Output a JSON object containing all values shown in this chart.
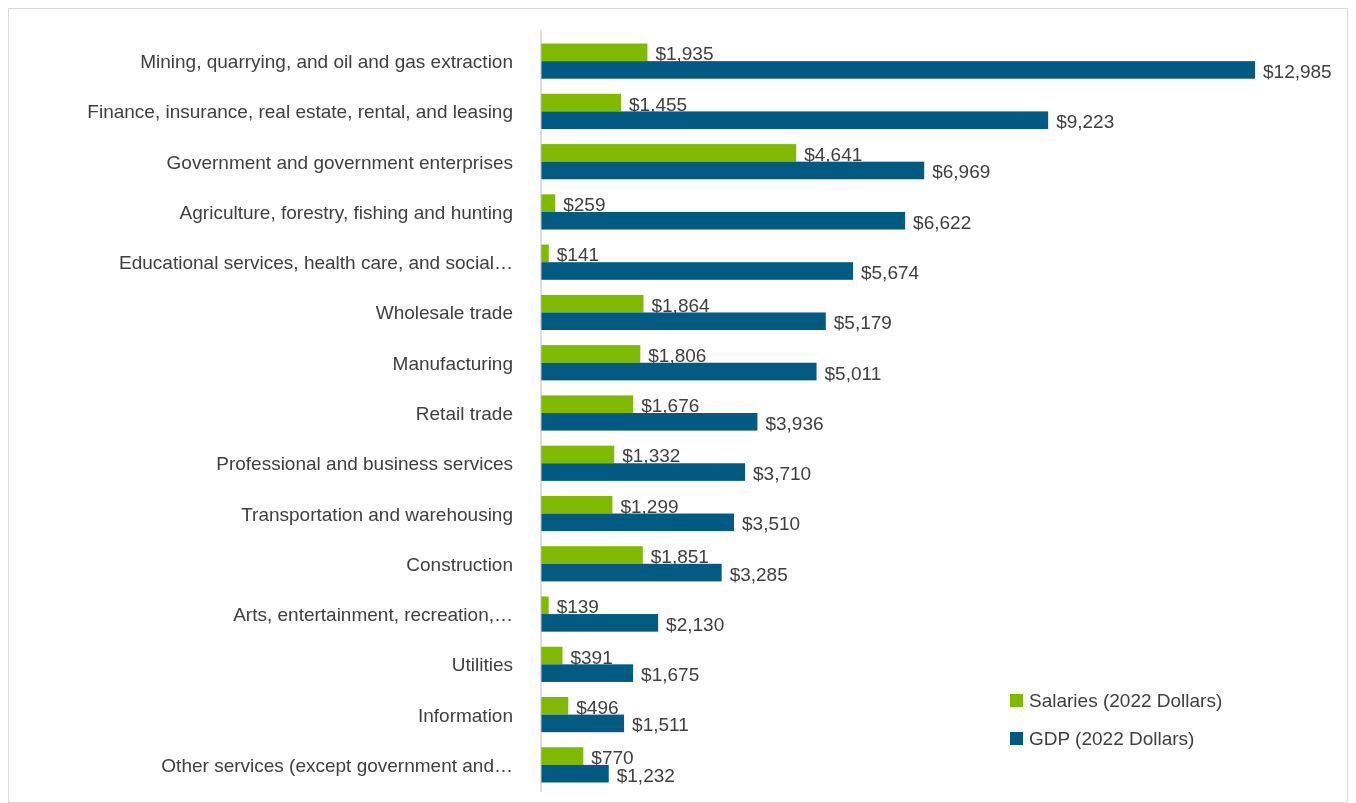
{
  "chart_data": {
    "type": "bar",
    "orientation": "horizontal",
    "legend": "bottom right",
    "categories": [
      "Mining, quarrying, and oil and gas extraction",
      "Finance, insurance, real estate, rental, and leasing",
      "Government and government enterprises",
      "Agriculture, forestry, fishing and hunting",
      "Educational services, health care, and social…",
      "Wholesale trade",
      "Manufacturing",
      "Retail trade",
      "Professional and business services",
      "Transportation and warehousing",
      "Construction",
      "Arts, entertainment, recreation,…",
      "Utilities",
      "Information",
      "Other services (except government and…"
    ],
    "series": [
      {
        "name": "Salaries (2022 Dollars)",
        "color": "#7fba00",
        "values": [
          1935,
          1455,
          4641,
          259,
          141,
          1864,
          1806,
          1676,
          1332,
          1299,
          1851,
          139,
          391,
          496,
          770
        ],
        "value_labels": [
          "$1,935",
          "$1,455",
          "$4,641",
          "$259",
          "$141",
          "$1,864",
          "$1,806",
          "$1,676",
          "$1,332",
          "$1,299",
          "$1,851",
          "$139",
          "$391",
          "$496",
          "$770"
        ]
      },
      {
        "name": "GDP (2022 Dollars)",
        "color": "#005a82",
        "values": [
          12985,
          9223,
          6969,
          6622,
          5674,
          5179,
          5011,
          3936,
          3710,
          3510,
          3285,
          2130,
          1675,
          1511,
          1232
        ],
        "value_labels": [
          "$12,985",
          "$9,223",
          "$6,969",
          "$6,622",
          "$5,674",
          "$5,179",
          "$5,011",
          "$3,936",
          "$3,710",
          "$3,510",
          "$3,285",
          "$2,130",
          "$1,675",
          "$1,511",
          "$1,232"
        ]
      }
    ]
  }
}
